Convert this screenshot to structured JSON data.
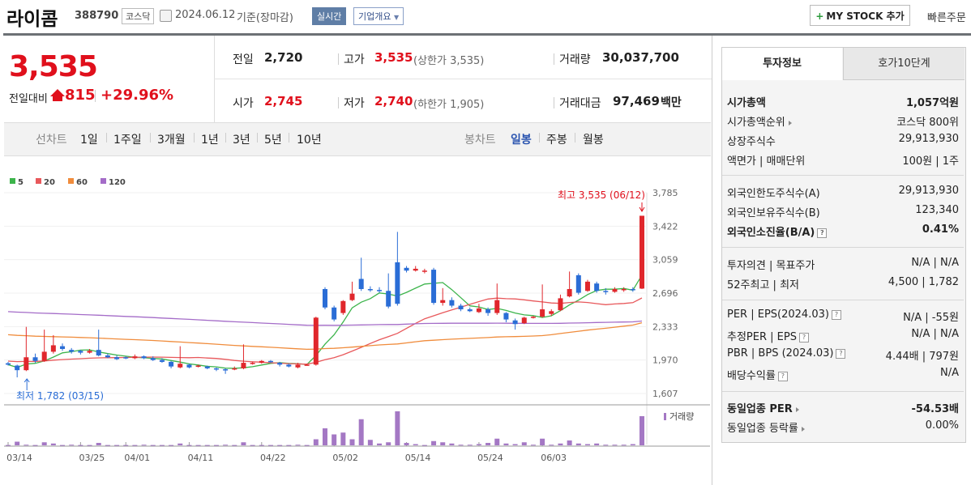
{
  "header": {
    "name": "라이콤",
    "code": "388790",
    "market": "코스닥",
    "date": "2024.06.12",
    "basis": "기준(장마감)",
    "realtime_label": "실시간",
    "company_info_label": "기업개요",
    "mystock_label": "MY STOCK 추가",
    "quick_order_label": "빠른주문"
  },
  "price": {
    "current": "3,535",
    "compare_label": "전일대비",
    "change": "815",
    "change_pct": "+29.96%",
    "direction": "up"
  },
  "quote": {
    "prev_label": "전일",
    "prev": "2,720",
    "high_label": "고가",
    "high": "3,535",
    "high_sub": "(상한가 3,535)",
    "volume_label": "거래량",
    "volume": "30,037,700",
    "open_label": "시가",
    "open": "2,745",
    "low_label": "저가",
    "low": "2,740",
    "low_sub": "(하한가 1,905)",
    "amount_label": "거래대금",
    "amount": "97,469",
    "amount_unit": "백만"
  },
  "period_bar": {
    "line_label": "선차트",
    "line_items": [
      "1일",
      "1주일",
      "3개월",
      "1년",
      "3년",
      "5년",
      "10년"
    ],
    "candle_label": "봉차트",
    "candle_items": [
      "일봉",
      "주봉",
      "월봉"
    ],
    "candle_selected": "일봉"
  },
  "chart_data": {
    "type": "candlestick",
    "legend": [
      {
        "name": "5",
        "color": "#3cb44b"
      },
      {
        "name": "20",
        "color": "#e8585b"
      },
      {
        "name": "60",
        "color": "#f08c3c"
      },
      {
        "name": "120",
        "color": "#a46cc8"
      }
    ],
    "y_ticks": [
      "3,785",
      "3,422",
      "3,059",
      "2,696",
      "2,333",
      "1,970",
      "1,607"
    ],
    "ylim": [
      1607,
      3785
    ],
    "x_ticks": [
      "03/14",
      "03/25",
      "04/01",
      "04/11",
      "04/22",
      "05/02",
      "05/14",
      "05/24",
      "06/03"
    ],
    "high_annotation": "최고 3,535 (06/12)",
    "low_annotation": "최저 1,782 (03/15)",
    "volume_label": "거래량",
    "candles": [
      [
        1935,
        1920,
        1950,
        1910
      ],
      [
        1910,
        1860,
        1920,
        1782
      ],
      [
        1860,
        2000,
        2330,
        1850
      ],
      [
        2000,
        1960,
        2040,
        1940
      ],
      [
        1960,
        2060,
        2300,
        1950
      ],
      [
        2060,
        2130,
        2240,
        2040
      ],
      [
        2120,
        2090,
        2150,
        2070
      ],
      [
        2080,
        2060,
        2100,
        2040
      ],
      [
        2070,
        2050,
        2080,
        2030
      ],
      [
        2050,
        2070,
        2090,
        2040
      ],
      [
        2080,
        2020,
        2300,
        2010
      ],
      [
        2020,
        2000,
        2040,
        1990
      ],
      [
        2000,
        1980,
        2020,
        1970
      ],
      [
        2000,
        1990,
        2010,
        1980
      ],
      [
        1990,
        2010,
        2030,
        1980
      ],
      [
        2010,
        1990,
        2020,
        1980
      ],
      [
        1990,
        1970,
        2010,
        1960
      ],
      [
        1970,
        1950,
        1990,
        1940
      ],
      [
        1950,
        1900,
        1960,
        1880
      ],
      [
        1890,
        1930,
        2120,
        1880
      ],
      [
        1920,
        1890,
        1930,
        1880
      ],
      [
        1900,
        1910,
        1920,
        1890
      ],
      [
        1900,
        1880,
        1910,
        1870
      ],
      [
        1880,
        1870,
        1890,
        1850
      ],
      [
        1870,
        1860,
        1880,
        1820
      ],
      [
        1870,
        1880,
        1900,
        1860
      ],
      [
        1880,
        1940,
        2140,
        1870
      ],
      [
        1930,
        1940,
        1950,
        1920
      ],
      [
        1940,
        1960,
        1970,
        1930
      ],
      [
        1960,
        1950,
        1970,
        1940
      ],
      [
        1940,
        1920,
        1950,
        1900
      ],
      [
        1920,
        1900,
        1930,
        1890
      ],
      [
        1890,
        1920,
        1940,
        1880
      ],
      [
        1920,
        1920,
        1930,
        1910
      ],
      [
        1920,
        2430,
        2440,
        1910
      ],
      [
        2740,
        2540,
        2760,
        2520
      ],
      [
        2540,
        2410,
        2560,
        2390
      ],
      [
        2480,
        2610,
        2620,
        2460
      ],
      [
        2620,
        2690,
        2820,
        2610
      ],
      [
        2850,
        2740,
        3080,
        2720
      ],
      [
        2740,
        2730,
        2770,
        2710
      ],
      [
        2730,
        2720,
        2760,
        2700
      ],
      [
        2720,
        2550,
        2910,
        2530
      ],
      [
        3030,
        2580,
        3360,
        2560
      ],
      [
        2970,
        2940,
        2990,
        2920
      ],
      [
        2940,
        2960,
        2990,
        2930
      ],
      [
        2940,
        2940,
        2960,
        2910
      ],
      [
        2950,
        2590,
        2970,
        2570
      ],
      [
        2590,
        2620,
        2750,
        2560
      ],
      [
        2620,
        2560,
        2650,
        2540
      ],
      [
        2560,
        2520,
        2580,
        2500
      ],
      [
        2520,
        2500,
        2540,
        2490
      ],
      [
        2490,
        2530,
        2580,
        2480
      ],
      [
        2520,
        2480,
        2540,
        2450
      ],
      [
        2480,
        2620,
        2800,
        2460
      ],
      [
        2480,
        2410,
        2490,
        2380
      ],
      [
        2400,
        2360,
        2420,
        2300
      ],
      [
        2370,
        2430,
        2440,
        2360
      ],
      [
        2430,
        2440,
        2450,
        2420
      ],
      [
        2440,
        2520,
        2790,
        2430
      ],
      [
        2470,
        2500,
        2520,
        2450
      ],
      [
        2510,
        2640,
        2680,
        2500
      ],
      [
        2660,
        2740,
        2930,
        2650
      ],
      [
        2890,
        2700,
        2910,
        2680
      ],
      [
        2720,
        2820,
        2840,
        2710
      ],
      [
        2800,
        2720,
        2820,
        2700
      ],
      [
        2720,
        2710,
        2750,
        2680
      ],
      [
        2710,
        2740,
        2760,
        2700
      ],
      [
        2730,
        2740,
        2760,
        2710
      ],
      [
        2740,
        2730,
        2760,
        2710
      ],
      [
        2745,
        3535,
        3535,
        2740
      ]
    ],
    "volumes": [
      0.05,
      0.6,
      0.1,
      0.05,
      0.5,
      0.3,
      0.05,
      0.1,
      0.05,
      0.05,
      0.4,
      0.05,
      0.05,
      0.05,
      0.05,
      0.1,
      0.05,
      0.05,
      0.05,
      0.3,
      0.05,
      0.05,
      0.05,
      0.05,
      0.1,
      0.05,
      0.5,
      0.05,
      0.05,
      0.05,
      0.05,
      0.05,
      0.1,
      0.05,
      1.0,
      2.8,
      1.8,
      2.1,
      1.0,
      4.3,
      0.9,
      0.3,
      0.5,
      5.6,
      0.4,
      0.2,
      0.05,
      0.7,
      0.5,
      0.3,
      0.1,
      0.1,
      0.2,
      0.4,
      1.1,
      0.3,
      0.2,
      0.5,
      0.1,
      1.1,
      0.1,
      0.3,
      0.8,
      0.3,
      0.2,
      0.3,
      0.1,
      0.1,
      0.1,
      0.2,
      4.8
    ]
  },
  "invest": {
    "tab_invest": "투자정보",
    "tab_hoga": "호가10단계",
    "rows1": [
      {
        "k": "시가총액",
        "v": "1,057억원",
        "bold": true
      },
      {
        "k": "시가총액순위",
        "v": "코스닥 800위",
        "arrow": true
      },
      {
        "k": "상장주식수",
        "v": "29,913,930"
      },
      {
        "k": "액면가 | 매매단위",
        "v": "100원 | 1주"
      }
    ],
    "rows2": [
      {
        "k": "외국인한도주식수(A)",
        "v": "29,913,930"
      },
      {
        "k": "외국인보유주식수(B)",
        "v": "123,340"
      },
      {
        "k": "외국인소진율(B/A)",
        "v": "0.41%",
        "bold": true,
        "q": true
      }
    ],
    "rows3": [
      {
        "k": "투자의견 | 목표주가",
        "v": "N/A | N/A"
      },
      {
        "k": "52주최고 | 최저",
        "v": "4,500 | 1,782"
      }
    ],
    "rows4": [
      {
        "k": "PER | EPS(2024.03)",
        "v": "N/A | -55원",
        "q": true
      },
      {
        "k": "추정PER | EPS",
        "v": "N/A | N/A",
        "q": true
      },
      {
        "k": "PBR | BPS (2024.03)",
        "v": "4.44배 | 797원",
        "q": true
      },
      {
        "k": "배당수익률",
        "v": "N/A",
        "q": true
      }
    ],
    "rows5": [
      {
        "k": "동일업종 PER",
        "v": "-54.53배",
        "bold": true,
        "arrow": true
      },
      {
        "k": "동일업종 등락률",
        "v": "0.00%",
        "arrow": true
      }
    ]
  }
}
